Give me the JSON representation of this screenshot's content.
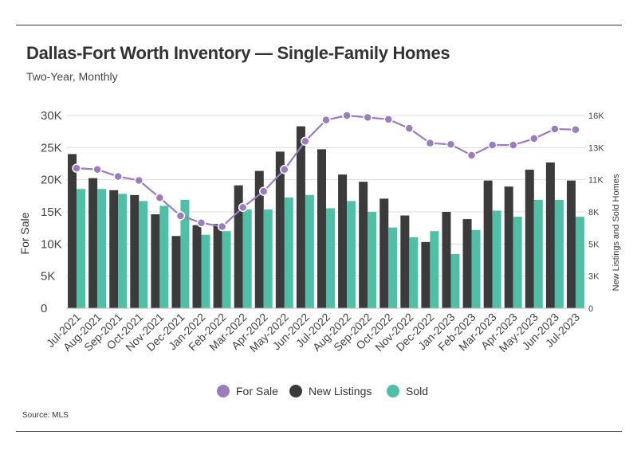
{
  "title": "Dallas-Fort Worth Inventory — Single-Family Homes",
  "subtitle": "Two-Year, Monthly",
  "source": "Source:  MLS",
  "colors": {
    "for_sale": "#9b7dbd",
    "new_listings": "#3b3b3b",
    "sold": "#4fbfa5",
    "grid": "#dddddd",
    "axis_text": "#444444"
  },
  "chart_data": {
    "type": "bar",
    "categories": [
      "Jul-2021",
      "Aug-2021",
      "Sep-2021",
      "Oct-2021",
      "Nov-2021",
      "Dec-2021",
      "Jan-2022",
      "Feb-2022",
      "Mar-2022",
      "Apr-2022",
      "May-2022",
      "Jun-2022",
      "Jul-2022",
      "Aug-2022",
      "Sep-2022",
      "Oct-2022",
      "Nov-2022",
      "Dec-2022",
      "Jan-2023",
      "Feb-2023",
      "Mar-2023",
      "Apr-2023",
      "May-2023",
      "Jun-2023",
      "Jul-2023"
    ],
    "series": [
      {
        "name": "For Sale",
        "type": "line",
        "axis": "left",
        "color": "#9b7dbd",
        "values": [
          21800,
          21600,
          20500,
          19900,
          17200,
          14400,
          13300,
          12700,
          15700,
          18200,
          21600,
          26000,
          29300,
          30000,
          29700,
          29400,
          28000,
          25700,
          25500,
          23800,
          25400,
          25400,
          26400,
          27900,
          27800
        ]
      },
      {
        "name": "New Listings",
        "type": "bar",
        "axis": "right",
        "color": "#3b3b3b",
        "values": [
          12800,
          10800,
          9800,
          9400,
          7800,
          6000,
          6900,
          7000,
          10200,
          11400,
          13000,
          15100,
          13200,
          11100,
          10500,
          9100,
          7700,
          5500,
          8000,
          7400,
          10600,
          10100,
          11500,
          12100,
          10600
        ]
      },
      {
        "name": "Sold",
        "type": "bar",
        "axis": "right",
        "color": "#4fbfa5",
        "values": [
          9900,
          9900,
          9500,
          8900,
          8500,
          9000,
          6100,
          6400,
          8200,
          8200,
          9200,
          9400,
          8300,
          8900,
          8000,
          6700,
          5900,
          6400,
          4500,
          6500,
          8100,
          7600,
          9000,
          9000,
          7600
        ]
      }
    ],
    "y_left": {
      "label": "For Sale",
      "ylim": [
        0,
        30000
      ],
      "ticks": [
        "0",
        "5K",
        "10K",
        "15K",
        "20K",
        "25K",
        "30K"
      ]
    },
    "y_right": {
      "label": "New Listings and Sold Homes",
      "ylim": [
        0,
        16000
      ],
      "ticks": [
        "0",
        "3K",
        "5K",
        "8K",
        "11K",
        "13K",
        "16K"
      ]
    },
    "grid": true,
    "legend_position": "bottom"
  }
}
